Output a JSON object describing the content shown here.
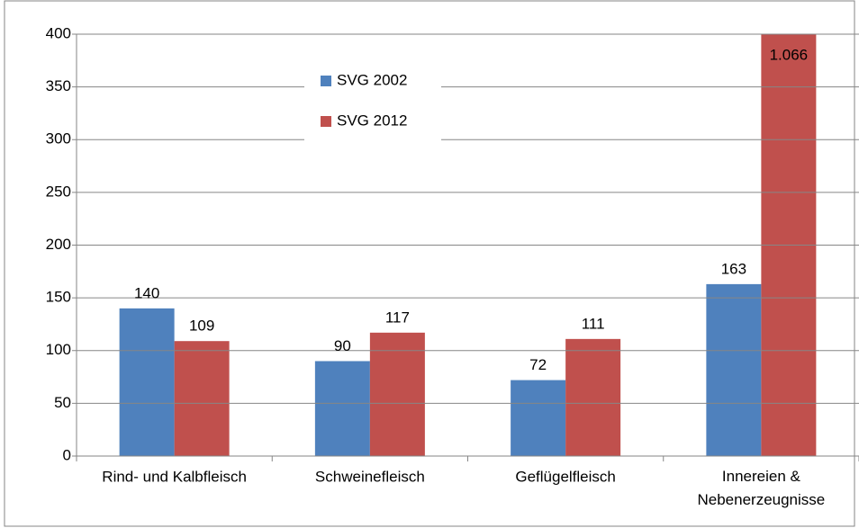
{
  "chart_data": {
    "type": "bar",
    "categories": [
      "Rind- und Kalbfleisch",
      "Schweinefleisch",
      "Geflügelfleisch",
      "Innereien & Nebenerzeugnisse"
    ],
    "series": [
      {
        "name": "SVG 2002",
        "color": "#4f81bd",
        "values": [
          140,
          90,
          72,
          163
        ]
      },
      {
        "name": "SVG 2012",
        "color": "#c0504d",
        "values": [
          109,
          117,
          111,
          1066
        ],
        "value_labels": [
          "109",
          "117",
          "111",
          "1.066"
        ]
      }
    ],
    "ylim": [
      0,
      400
    ],
    "yticks": [
      0,
      50,
      100,
      150,
      200,
      250,
      300,
      350,
      400
    ],
    "grid": true
  }
}
